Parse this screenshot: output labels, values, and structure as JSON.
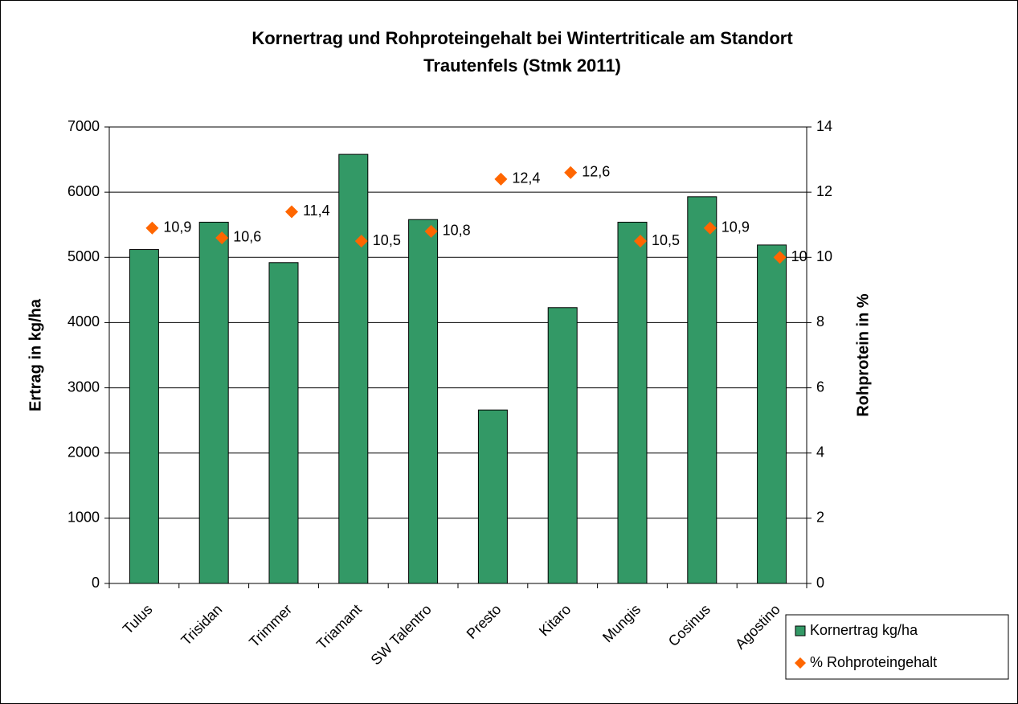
{
  "chart_data": {
    "type": "bar",
    "title": [
      "Kornertrag und Rohproteingehalt bei Wintertriticale am Standort",
      "Trautenfels (Stmk 2011)"
    ],
    "y_label": "Ertrag in kg/ha",
    "y2_label": "Rohprotein in %",
    "categories": [
      "Tulus",
      "Trisidan",
      "Trimmer",
      "Triamant",
      "SW Talentro",
      "Presto",
      "Kitaro",
      "Mungis",
      "Cosinus",
      "Agostino"
    ],
    "series": [
      {
        "name": "Kornertrag kg/ha",
        "type": "bar",
        "color": "#339966",
        "values": [
          5120,
          5540,
          4920,
          6580,
          5580,
          2660,
          4230,
          5540,
          5930,
          5190
        ]
      },
      {
        "name": "% Rohproteingehalt",
        "type": "scatter",
        "axis": "y2",
        "color": "#ff6600",
        "values": [
          10.9,
          10.6,
          11.4,
          10.5,
          10.8,
          12.4,
          12.6,
          10.5,
          10.9,
          10
        ],
        "value_labels": [
          "10,9",
          "10,6",
          "11,4",
          "10,5",
          "10,8",
          "12,4",
          "12,6",
          "10,5",
          "10,9",
          "10"
        ]
      }
    ],
    "ylim": [
      0,
      7000
    ],
    "yticks": [
      0,
      1000,
      2000,
      3000,
      4000,
      5000,
      6000,
      7000
    ],
    "y2lim": [
      0,
      14
    ],
    "y2ticks": [
      0,
      2,
      4,
      6,
      8,
      10,
      12,
      14
    ],
    "grid": true,
    "legend": "bottom-right"
  }
}
